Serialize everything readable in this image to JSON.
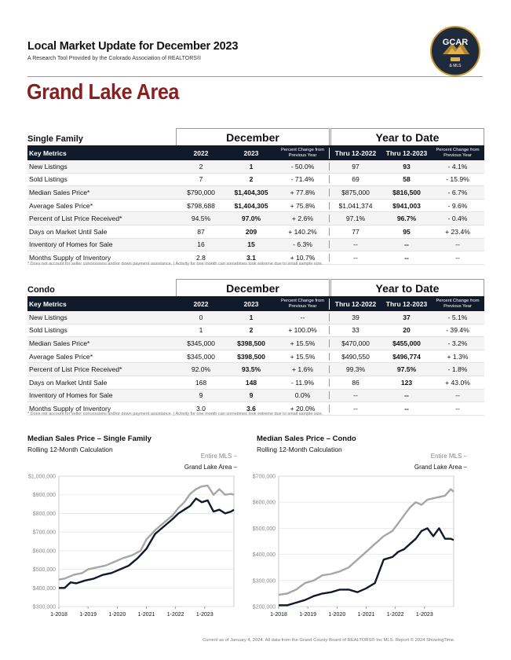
{
  "header": {
    "title": "Local Market Update for December 2023",
    "subtitle": "A Research Tool Provided by the Colorado Association of REALTORS®",
    "logo_text": "GCAR",
    "logo_sub": "& MLS"
  },
  "area": "Grand Lake Area",
  "tables": [
    {
      "section": "Single Family",
      "group1": "December",
      "group2": "Year to Date",
      "columns": [
        "Key Metrics",
        "2022",
        "2023",
        "Percent Change from Previous Year",
        "Thru 12-2022",
        "Thru 12-2023",
        "Percent Change from Previous Year"
      ],
      "rows": [
        [
          "New Listings",
          "2",
          "1",
          "- 50.0%",
          "97",
          "93",
          "- 4.1%"
        ],
        [
          "Sold Listings",
          "7",
          "2",
          "- 71.4%",
          "69",
          "58",
          "- 15.9%"
        ],
        [
          "Median Sales Price*",
          "$790,000",
          "$1,404,305",
          "+ 77.8%",
          "$875,000",
          "$816,500",
          "- 6.7%"
        ],
        [
          "Average Sales Price*",
          "$798,688",
          "$1,404,305",
          "+ 75.8%",
          "$1,041,374",
          "$941,003",
          "- 9.6%"
        ],
        [
          "Percent of List Price Received*",
          "94.5%",
          "97.0%",
          "+ 2.6%",
          "97.1%",
          "96.7%",
          "- 0.4%"
        ],
        [
          "Days on Market Until Sale",
          "87",
          "209",
          "+ 140.2%",
          "77",
          "95",
          "+ 23.4%"
        ],
        [
          "Inventory of Homes for Sale",
          "16",
          "15",
          "- 6.3%",
          "--",
          "--",
          "--"
        ],
        [
          "Months Supply of Inventory",
          "2.8",
          "3.1",
          "+ 10.7%",
          "--",
          "--",
          "--"
        ]
      ],
      "note": "* Does not account for seller concessions and/or down payment assistance.  |  Activity for one month can sometimes look extreme due to small sample size."
    },
    {
      "section": "Condo",
      "group1": "December",
      "group2": "Year to Date",
      "columns": [
        "Key Metrics",
        "2022",
        "2023",
        "Percent Change from Previous Year",
        "Thru 12-2022",
        "Thru 12-2023",
        "Percent Change from Previous Year"
      ],
      "rows": [
        [
          "New Listings",
          "0",
          "1",
          "--",
          "39",
          "37",
          "- 5.1%"
        ],
        [
          "Sold Listings",
          "1",
          "2",
          "+ 100.0%",
          "33",
          "20",
          "- 39.4%"
        ],
        [
          "Median Sales Price*",
          "$345,000",
          "$398,500",
          "+ 15.5%",
          "$470,000",
          "$455,000",
          "- 3.2%"
        ],
        [
          "Average Sales Price*",
          "$345,000",
          "$398,500",
          "+ 15.5%",
          "$490,550",
          "$496,774",
          "+ 1.3%"
        ],
        [
          "Percent of List Price Received*",
          "92.0%",
          "93.5%",
          "+ 1.6%",
          "99.3%",
          "97.5%",
          "- 1.8%"
        ],
        [
          "Days on Market Until Sale",
          "168",
          "148",
          "- 11.9%",
          "86",
          "123",
          "+ 43.0%"
        ],
        [
          "Inventory of Homes for Sale",
          "9",
          "9",
          "0.0%",
          "--",
          "--",
          "--"
        ],
        [
          "Months Supply of Inventory",
          "3.0",
          "3.6",
          "+ 20.0%",
          "--",
          "--",
          "--"
        ]
      ],
      "note": "* Does not account for seller concessions and/or down payment assistance.  |  Activity for one month can sometimes look extreme due to small sample size."
    }
  ],
  "chart_data": [
    {
      "type": "line",
      "title": "Median Sales Price – Single Family",
      "subtitle": "Rolling 12-Month Calculation",
      "legend": [
        "Entire MLS –",
        "Grand Lake Area –"
      ],
      "ylim": [
        300000,
        1000000
      ],
      "yticks": [
        "$300,000",
        "$400,000",
        "$500,000",
        "$600,000",
        "$700,000",
        "$800,000",
        "$900,000",
        "$1,000,000"
      ],
      "xticks": [
        "1-2018",
        "1-2019",
        "1-2020",
        "1-2021",
        "1-2022",
        "1-2023"
      ],
      "x_start": 2018.0,
      "x_end": 2024.0,
      "series": [
        {
          "name": "Entire MLS",
          "color": "#a6a6a6",
          "x": [
            2018.0,
            2018.2,
            2018.5,
            2018.8,
            2019.0,
            2019.3,
            2019.6,
            2019.9,
            2020.2,
            2020.5,
            2020.8,
            2021.0,
            2021.3,
            2021.6,
            2021.9,
            2022.1,
            2022.3,
            2022.5,
            2022.7,
            2022.9,
            2023.1,
            2023.3,
            2023.5,
            2023.7,
            2023.9,
            2024.0
          ],
          "values": [
            445000,
            450000,
            470000,
            480000,
            500000,
            510000,
            520000,
            540000,
            560000,
            575000,
            600000,
            660000,
            710000,
            750000,
            790000,
            830000,
            860000,
            905000,
            930000,
            945000,
            950000,
            900000,
            930000,
            900000,
            905000,
            900000
          ]
        },
        {
          "name": "Grand Lake Area",
          "color": "#101a2b",
          "x": [
            2018.0,
            2018.2,
            2018.4,
            2018.6,
            2018.9,
            2019.2,
            2019.5,
            2019.8,
            2020.1,
            2020.4,
            2020.7,
            2021.0,
            2021.3,
            2021.6,
            2021.9,
            2022.1,
            2022.3,
            2022.5,
            2022.7,
            2022.9,
            2023.1,
            2023.3,
            2023.5,
            2023.7,
            2023.9,
            2024.0
          ],
          "values": [
            400000,
            400000,
            430000,
            425000,
            440000,
            450000,
            470000,
            480000,
            500000,
            520000,
            560000,
            610000,
            690000,
            730000,
            770000,
            800000,
            820000,
            840000,
            880000,
            860000,
            870000,
            810000,
            820000,
            800000,
            810000,
            820000
          ]
        }
      ]
    },
    {
      "type": "line",
      "title": "Median Sales Price – Condo",
      "subtitle": "Rolling 12-Month Calculation",
      "legend": [
        "Entire MLS –",
        "Grand Lake Area –"
      ],
      "ylim": [
        200000,
        700000
      ],
      "yticks": [
        "$200,000",
        "$300,000",
        "$400,000",
        "$500,000",
        "$600,000",
        "$700,000"
      ],
      "xticks": [
        "1-2018",
        "1-2019",
        "1-2020",
        "1-2021",
        "1-2022",
        "1-2023"
      ],
      "x_start": 2018.0,
      "x_end": 2024.0,
      "series": [
        {
          "name": "Entire MLS",
          "color": "#a6a6a6",
          "x": [
            2018.0,
            2018.3,
            2018.6,
            2018.9,
            2019.2,
            2019.5,
            2019.8,
            2020.1,
            2020.4,
            2020.7,
            2021.0,
            2021.3,
            2021.6,
            2021.9,
            2022.1,
            2022.3,
            2022.5,
            2022.7,
            2022.9,
            2023.1,
            2023.3,
            2023.5,
            2023.7,
            2023.9,
            2024.0
          ],
          "values": [
            245000,
            250000,
            265000,
            290000,
            300000,
            320000,
            325000,
            335000,
            350000,
            380000,
            410000,
            440000,
            470000,
            490000,
            520000,
            550000,
            580000,
            600000,
            590000,
            610000,
            615000,
            620000,
            625000,
            650000,
            640000
          ]
        },
        {
          "name": "Grand Lake Area",
          "color": "#101a2b",
          "x": [
            2018.0,
            2018.3,
            2018.6,
            2018.9,
            2019.2,
            2019.5,
            2019.8,
            2020.1,
            2020.4,
            2020.7,
            2021.0,
            2021.3,
            2021.6,
            2021.9,
            2022.1,
            2022.3,
            2022.5,
            2022.7,
            2022.9,
            2023.1,
            2023.3,
            2023.5,
            2023.7,
            2023.9,
            2024.0
          ],
          "values": [
            205000,
            205000,
            215000,
            225000,
            240000,
            250000,
            255000,
            265000,
            265000,
            255000,
            270000,
            290000,
            380000,
            390000,
            410000,
            420000,
            440000,
            460000,
            490000,
            500000,
            470000,
            500000,
            460000,
            460000,
            455000
          ]
        }
      ]
    }
  ],
  "footer": "Current as of January 4, 2024. All data from the Grand County Board of REALTORS® Inc MLS. Report © 2024 ShowingTime."
}
